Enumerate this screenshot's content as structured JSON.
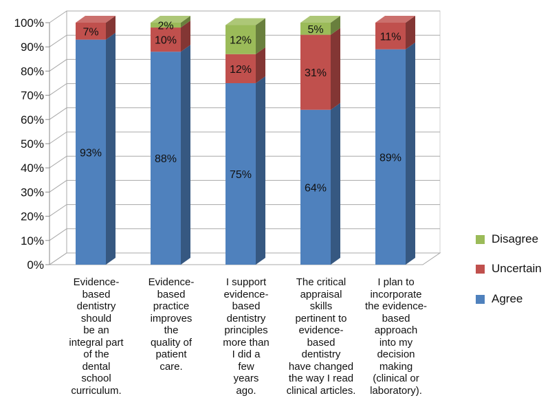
{
  "chart_data": {
    "type": "bar",
    "stacked": true,
    "percent": true,
    "categories": [
      "Evidence-based dentistry should be an integral part of the dental school curriculum.",
      "Evidence-based practice improves the quality of patient care.",
      "I support evidence-based dentistry principles more than I did a few years ago.",
      "The critical appraisal skills pertinent to evidence-based dentistry have changed the way I read clinical articles.",
      "I plan to incorporate the evidence-based approach into my decision making (clinical or laboratory)."
    ],
    "category_lines": [
      [
        "Evidence-",
        "based",
        "dentistry",
        "should",
        "be an",
        "integral part",
        "of the",
        "dental",
        "school",
        "curriculum."
      ],
      [
        "Evidence-",
        "based",
        "practice",
        "improves",
        "the",
        "quality of",
        "patient",
        "care."
      ],
      [
        "I support",
        "evidence-",
        "based",
        "dentistry",
        "principles",
        "more than",
        "I did a",
        "few",
        "years",
        "ago."
      ],
      [
        "The critical",
        "appraisal",
        "skills",
        "pertinent to",
        "evidence-",
        "based",
        "dentistry",
        "have changed",
        "the way I read",
        "clinical articles."
      ],
      [
        "I plan to",
        "incorporate",
        "the evidence-",
        "based",
        "approach",
        "into my",
        "decision",
        "making",
        "(clinical or",
        "laboratory)."
      ]
    ],
    "series": [
      {
        "name": "Agree",
        "values": [
          93,
          88,
          75,
          64,
          89
        ],
        "labels": [
          "93%",
          "88%",
          "75%",
          "64%",
          "89%"
        ],
        "color": "#4f81bd"
      },
      {
        "name": "Uncertain",
        "values": [
          7,
          10,
          12,
          31,
          11
        ],
        "labels": [
          "7%",
          "10%",
          "12%",
          "31%",
          "11%"
        ],
        "color": "#c0504d"
      },
      {
        "name": "Disagree",
        "values": [
          0,
          2,
          12,
          5,
          0
        ],
        "labels": [
          "",
          "2%",
          "12%",
          "5%",
          ""
        ],
        "color": "#9bbb59"
      }
    ],
    "ylim": [
      0,
      100
    ],
    "yticks": [
      "0%",
      "10%",
      "20%",
      "30%",
      "40%",
      "50%",
      "60%",
      "70%",
      "80%",
      "90%",
      "100%"
    ],
    "grid": true,
    "legend": "right",
    "title": "",
    "xlabel": "",
    "ylabel": ""
  }
}
